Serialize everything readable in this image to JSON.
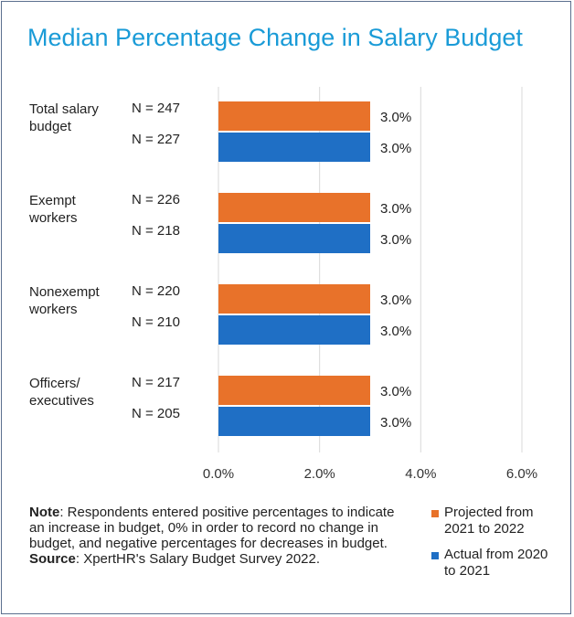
{
  "title": "Median Percentage Change in Salary Budget",
  "chart_data": {
    "type": "bar",
    "orientation": "horizontal",
    "title": "Median Percentage Change in Salary Budget",
    "xlim": [
      0,
      6
    ],
    "xticks": [
      "0.0%",
      "2.0%",
      "4.0%",
      "6.0%"
    ],
    "grid": true,
    "legend_position": "bottom-right",
    "groups": [
      {
        "label": "Total salary budget",
        "label_lines": [
          "Total salary",
          "budget"
        ],
        "bars": [
          {
            "series": "Projected from 2021 to 2022",
            "n": "N = 247",
            "value": 3.0,
            "value_label": "3.0%"
          },
          {
            "series": "Actual from 2020 to 2021",
            "n": "N = 227",
            "value": 3.0,
            "value_label": "3.0%"
          }
        ]
      },
      {
        "label": "Exempt workers",
        "label_lines": [
          "Exempt",
          "workers"
        ],
        "bars": [
          {
            "series": "Projected from 2021 to 2022",
            "n": "N = 226",
            "value": 3.0,
            "value_label": "3.0%"
          },
          {
            "series": "Actual from 2020 to 2021",
            "n": "N = 218",
            "value": 3.0,
            "value_label": "3.0%"
          }
        ]
      },
      {
        "label": "Nonexempt workers",
        "label_lines": [
          "Nonexempt",
          "workers"
        ],
        "bars": [
          {
            "series": "Projected from 2021 to 2022",
            "n": "N = 220",
            "value": 3.0,
            "value_label": "3.0%"
          },
          {
            "series": "Actual from 2020 to 2021",
            "n": "N = 210",
            "value": 3.0,
            "value_label": "3.0%"
          }
        ]
      },
      {
        "label": "Officers/ executives",
        "label_lines": [
          "Officers/",
          "executives"
        ],
        "bars": [
          {
            "series": "Projected from 2021 to 2022",
            "n": "N = 217",
            "value": 3.0,
            "value_label": "3.0%"
          },
          {
            "series": "Actual from 2020 to 2021",
            "n": "N = 205",
            "value": 3.0,
            "value_label": "3.0%"
          }
        ]
      }
    ],
    "series": [
      {
        "name": "Projected from 2021 to 2022",
        "color": "#e8722a"
      },
      {
        "name": "Actual from 2020 to 2021",
        "color": "#1f6fc5"
      }
    ]
  },
  "legend": {
    "items": [
      {
        "lines": [
          "Projected from",
          "2021 to 2022"
        ],
        "color": "#e8722a"
      },
      {
        "lines": [
          "Actual from 2020",
          "to 2021"
        ],
        "color": "#1f6fc5"
      }
    ]
  },
  "note": {
    "note_label": "Note",
    "note_text": ": Respondents entered positive percentages to indicate an increase in budget, 0% in order to record no change in budget, and negative percentages for decreases in budget.",
    "source_label": "Source",
    "source_text": ": XpertHR's Salary Budget Survey 2022."
  }
}
